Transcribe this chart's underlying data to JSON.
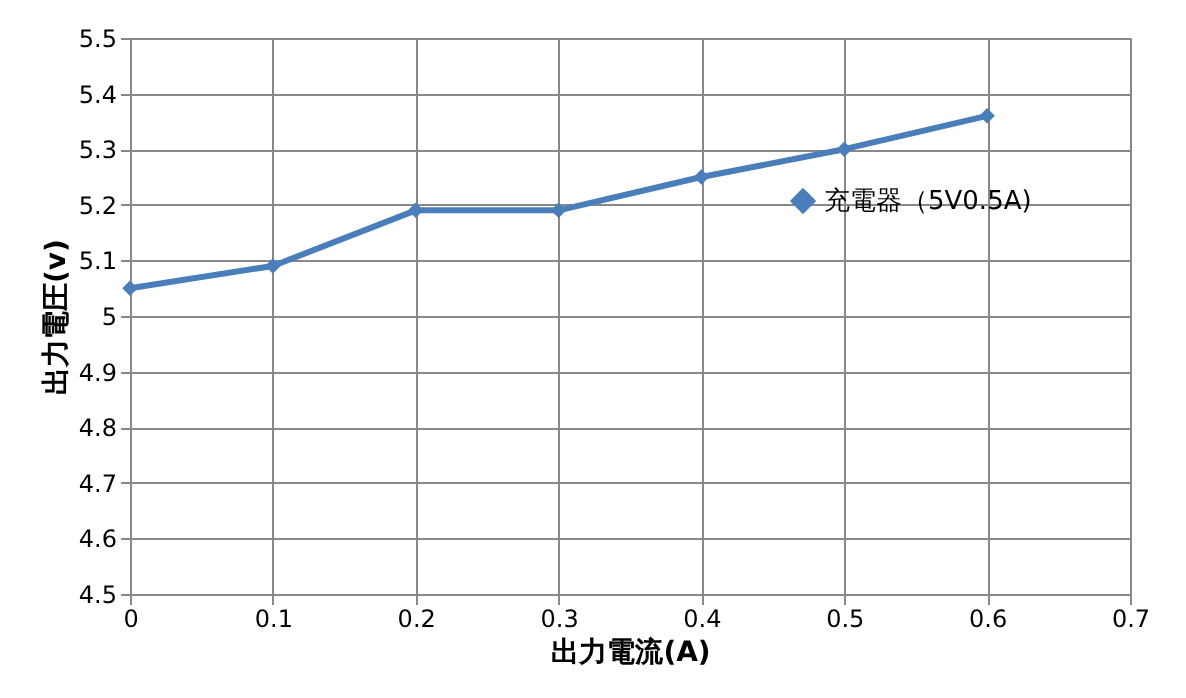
{
  "chart_data": {
    "type": "line",
    "xlabel": "出力電流(A)",
    "ylabel": "出力電圧(v)",
    "x": [
      0,
      0.1,
      0.2,
      0.3,
      0.4,
      0.5,
      0.6
    ],
    "series": [
      {
        "name": "充電器（5V0.5A)",
        "color": "#4a7ebb",
        "values": [
          5.05,
          5.09,
          5.19,
          5.19,
          5.25,
          5.3,
          5.36
        ]
      }
    ],
    "xlim": [
      0,
      0.7
    ],
    "xticks": [
      0,
      0.1,
      0.2,
      0.3,
      0.4,
      0.5,
      0.6,
      0.7
    ],
    "ylim": [
      4.5,
      5.5
    ],
    "yticks": [
      4.5,
      4.6,
      4.7,
      4.8,
      4.9,
      5,
      5.1,
      5.2,
      5.3,
      5.4,
      5.5
    ],
    "grid": true,
    "legend": "right",
    "marker": "diamond",
    "line_style": "solid"
  }
}
